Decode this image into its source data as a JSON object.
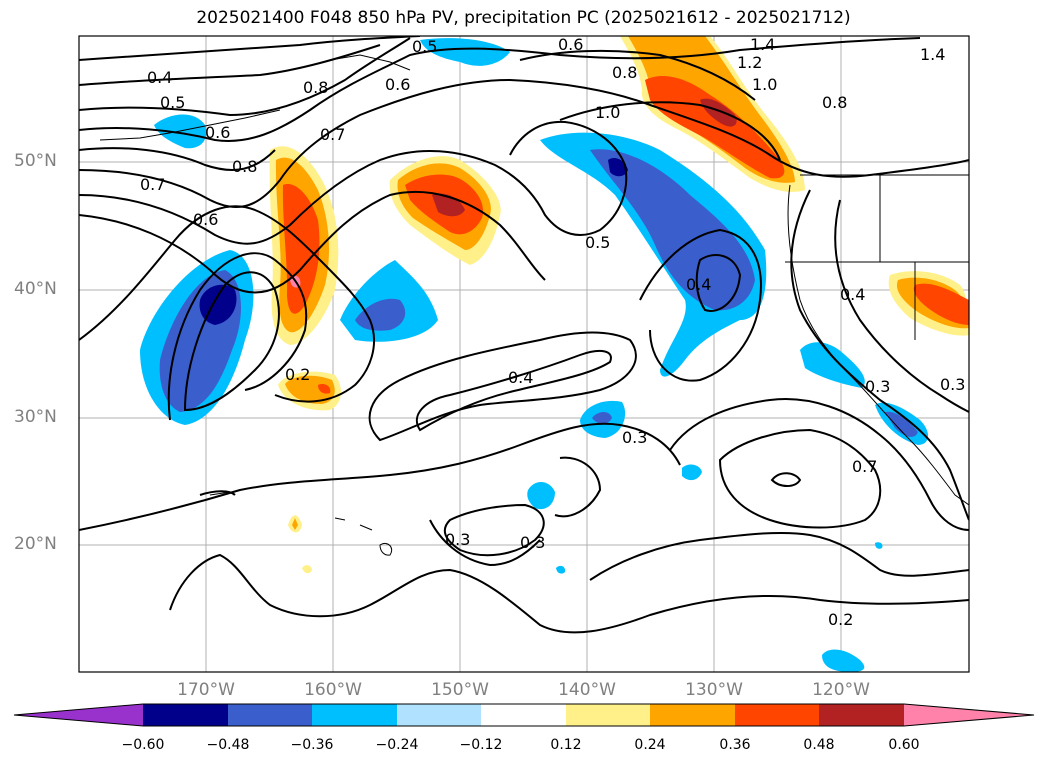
{
  "title": "2025021400 F048 850 hPa PV, precipitation PC (2025021612 - 2025021712)",
  "lat_ticks": [
    "50°N",
    "40°N",
    "30°N",
    "20°N"
  ],
  "lon_ticks": [
    "170°W",
    "160°W",
    "150°W",
    "140°W",
    "130°W",
    "120°W"
  ],
  "colorbar": {
    "levels": [
      "−0.60",
      "−0.48",
      "−0.36",
      "−0.24",
      "−0.12",
      "0.12",
      "0.24",
      "0.36",
      "0.48",
      "0.60"
    ],
    "colors": [
      "#9932cc",
      "#00008b",
      "#3a5fcd",
      "#00bfff",
      "#b0e2ff",
      "#ffffff",
      "#fff08a",
      "#ffa500",
      "#ff4500",
      "#b22222",
      "#ff82ab"
    ]
  },
  "contour_labels": [
    "0.4",
    "0.5",
    "0.6",
    "0.8",
    "0.7",
    "0.6",
    "0.8",
    "0.7",
    "0.6",
    "1.0",
    "0.6",
    "0.8",
    "1.4",
    "1.2",
    "1.0",
    "1.4",
    "0.8",
    "0.5",
    "0.4",
    "0.4",
    "0.2",
    "0.4",
    "0.3",
    "0.3",
    "0.3",
    "0.7",
    "0.3",
    "0.2",
    "0.3",
    "0.5"
  ]
}
